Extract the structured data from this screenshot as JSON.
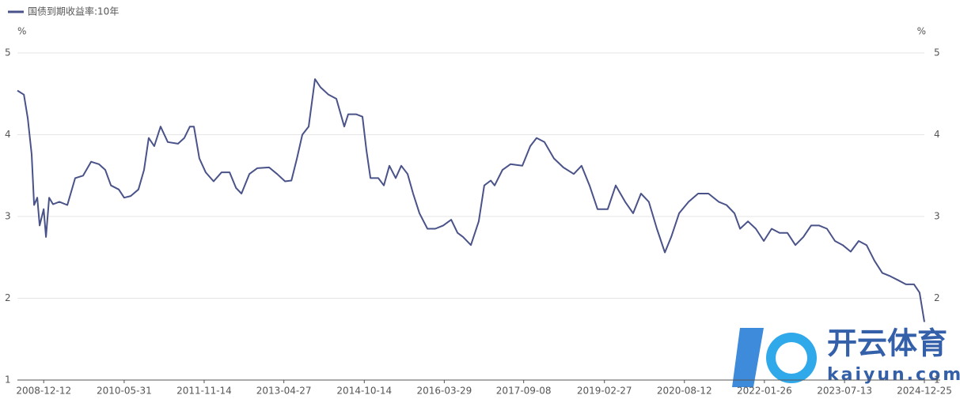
{
  "chart_data": {
    "type": "line",
    "yunit": "%",
    "y2unit": "%",
    "ylim": [
      1,
      5
    ],
    "yticks": [
      1,
      2,
      3,
      4,
      5
    ],
    "y2lim": [
      1,
      5
    ],
    "y2ticks": [
      1,
      2,
      3,
      4,
      5
    ],
    "grid": true,
    "legend": "top-left",
    "xlim": [
      "2008-06-20",
      "2024-12-25"
    ],
    "xticks": [
      "2008-12-12",
      "2010-05-31",
      "2011-11-14",
      "2013-04-27",
      "2014-10-14",
      "2016-03-29",
      "2017-09-08",
      "2019-02-27",
      "2020-08-12",
      "2022-01-26",
      "2023-07-13",
      "2024-12-25"
    ],
    "x": [
      "2008-06-20",
      "2008-08-02",
      "2008-08-28",
      "2008-09-23",
      "2008-10-09",
      "2008-10-30",
      "2008-11-15",
      "2008-12-12",
      "2008-12-27",
      "2009-01-17",
      "2009-02-12",
      "2009-03-26",
      "2009-05-18",
      "2009-07-09",
      "2009-08-31",
      "2009-10-23",
      "2009-12-14",
      "2010-01-25",
      "2010-03-04",
      "2010-04-25",
      "2010-05-31",
      "2010-07-13",
      "2010-09-03",
      "2010-10-10",
      "2010-11-10",
      "2010-12-17",
      "2011-01-28",
      "2011-03-17",
      "2011-05-24",
      "2011-07-05",
      "2011-08-11",
      "2011-09-07",
      "2011-10-13",
      "2011-11-24",
      "2012-01-16",
      "2012-03-09",
      "2012-05-01",
      "2012-06-13",
      "2012-07-19",
      "2012-09-10",
      "2012-11-01",
      "2013-01-19",
      "2013-03-13",
      "2013-05-05",
      "2013-06-16",
      "2013-07-23",
      "2013-08-28",
      "2013-10-09",
      "2013-11-20",
      "2013-12-27",
      "2014-02-18",
      "2014-04-11",
      "2014-06-03",
      "2014-06-29",
      "2014-08-20",
      "2014-10-02",
      "2014-10-28",
      "2014-11-24",
      "2015-01-15",
      "2015-02-21",
      "2015-03-30",
      "2015-05-11",
      "2015-06-17",
      "2015-07-29",
      "2015-09-04",
      "2015-10-16",
      "2015-12-08",
      "2016-01-29",
      "2016-03-22",
      "2016-05-14",
      "2016-06-25",
      "2016-08-01",
      "2016-09-22",
      "2016-11-13",
      "2016-12-20",
      "2017-02-01",
      "2017-02-27",
      "2017-04-20",
      "2017-06-12",
      "2017-08-30",
      "2017-10-22",
      "2017-12-03",
      "2018-01-24",
      "2018-03-28",
      "2018-05-30",
      "2018-08-07",
      "2018-09-28",
      "2018-11-20",
      "2019-01-12",
      "2019-03-21",
      "2019-05-13",
      "2019-07-15",
      "2019-09-06",
      "2019-10-28",
      "2019-12-19",
      "2020-02-11",
      "2020-04-04",
      "2020-05-16",
      "2020-07-08",
      "2020-09-09",
      "2020-11-11",
      "2021-01-19",
      "2021-03-28",
      "2021-05-19",
      "2021-07-11",
      "2021-08-17",
      "2021-10-09",
      "2021-11-30",
      "2022-01-22",
      "2022-03-15",
      "2022-05-07",
      "2022-06-28",
      "2022-08-20",
      "2022-10-12",
      "2022-12-03",
      "2023-01-25",
      "2023-03-18",
      "2023-05-10",
      "2023-07-01",
      "2023-08-23",
      "2023-10-15",
      "2023-12-06",
      "2024-01-28",
      "2024-03-20",
      "2024-05-12",
      "2024-07-04",
      "2024-08-25",
      "2024-10-17",
      "2024-11-23",
      "2024-12-25"
    ],
    "series": [
      {
        "name": "国债到期收益率:10年",
        "color": "#4a5389",
        "values": [
          4.54,
          4.49,
          4.2,
          3.76,
          3.14,
          3.23,
          2.89,
          3.09,
          2.75,
          3.23,
          3.15,
          3.18,
          3.14,
          3.47,
          3.5,
          3.67,
          3.64,
          3.57,
          3.38,
          3.33,
          3.23,
          3.25,
          3.33,
          3.57,
          3.96,
          3.86,
          4.1,
          3.91,
          3.89,
          3.96,
          4.1,
          4.1,
          3.71,
          3.54,
          3.43,
          3.54,
          3.54,
          3.35,
          3.28,
          3.52,
          3.59,
          3.6,
          3.52,
          3.43,
          3.44,
          3.71,
          4.0,
          4.1,
          4.68,
          4.58,
          4.49,
          4.44,
          4.1,
          4.25,
          4.25,
          4.22,
          3.81,
          3.47,
          3.47,
          3.38,
          3.62,
          3.47,
          3.62,
          3.52,
          3.28,
          3.04,
          2.85,
          2.85,
          2.89,
          2.96,
          2.8,
          2.75,
          2.65,
          2.94,
          3.38,
          3.44,
          3.38,
          3.57,
          3.64,
          3.62,
          3.86,
          3.96,
          3.91,
          3.71,
          3.6,
          3.52,
          3.62,
          3.38,
          3.09,
          3.09,
          3.38,
          3.18,
          3.04,
          3.28,
          3.18,
          2.85,
          2.56,
          2.75,
          3.04,
          3.18,
          3.28,
          3.28,
          3.18,
          3.14,
          3.04,
          2.85,
          2.94,
          2.85,
          2.7,
          2.85,
          2.8,
          2.8,
          2.65,
          2.75,
          2.89,
          2.89,
          2.85,
          2.7,
          2.65,
          2.57,
          2.7,
          2.65,
          2.46,
          2.31,
          2.27,
          2.22,
          2.17,
          2.17,
          2.07,
          1.71
        ]
      }
    ],
    "watermark": [
      "开云体育",
      "kaiyun.com"
    ]
  }
}
